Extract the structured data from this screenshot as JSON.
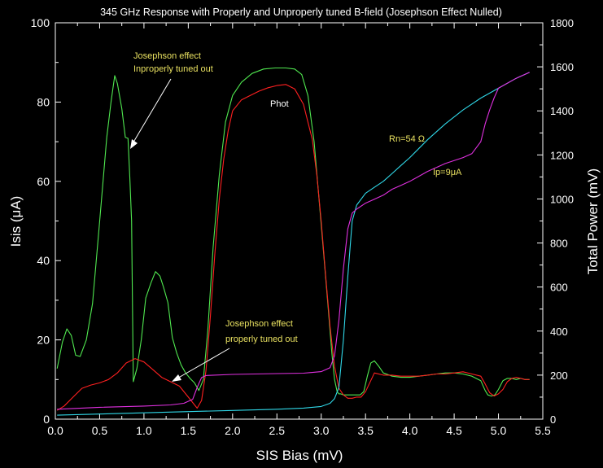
{
  "chart_data": {
    "type": "line",
    "title": "345 GHz Response with Properly and Unproperly tuned B-field (Josephson Effect Nulled)",
    "xlabel": "SIS Bias (mV)",
    "ylabel_left": "Isis (μA)",
    "ylabel_right": "Total Power (mV)",
    "xlim": [
      0,
      5.5
    ],
    "ylim_left": [
      0,
      100
    ],
    "ylim_right": [
      0,
      1800
    ],
    "xticks": [
      "0.0",
      "0.5",
      "1.0",
      "1.5",
      "2.0",
      "2.5",
      "3.0",
      "3.5",
      "4.0",
      "4.5",
      "5.0",
      "5.5"
    ],
    "yticks_left": [
      "0",
      "20",
      "40",
      "60",
      "80",
      "100"
    ],
    "yticks_right": [
      "0",
      "200",
      "400",
      "600",
      "800",
      "1000",
      "1200",
      "1400",
      "1600",
      "1800"
    ],
    "colors": {
      "background": "#000000",
      "axes": "#ffffff",
      "annotation": "#e8e060",
      "green": "#50e850",
      "red": "#ff2020",
      "cyan": "#30d8e8",
      "magenta": "#e030e0"
    },
    "annotations": [
      {
        "text_lines": [
          "Josephson effect",
          "Inproperly tuned out"
        ],
        "color": "#e8e060"
      },
      {
        "text_lines": [
          "Josephson effect",
          "properly tuned out"
        ],
        "color": "#e8e060"
      },
      {
        "text_lines": [
          "Phot"
        ],
        "color": "#ffffff"
      },
      {
        "text_lines": [
          "Rn=54 Ω"
        ],
        "color": "#e8e060"
      },
      {
        "text_lines": [
          "Ip=9μA"
        ],
        "color": "#e8e060"
      }
    ],
    "series": [
      {
        "axis": "right",
        "color": "#50e850",
        "x": [
          0.02,
          0.08,
          0.13,
          0.18,
          0.23,
          0.28,
          0.35,
          0.42,
          0.5,
          0.58,
          0.63,
          0.67,
          0.7,
          0.75,
          0.79,
          0.82,
          0.84,
          0.86,
          0.88,
          0.92,
          0.97,
          1.02,
          1.08,
          1.13,
          1.18,
          1.22,
          1.27,
          1.32,
          1.37,
          1.42,
          1.47,
          1.52,
          1.57,
          1.62,
          1.67,
          1.72,
          1.78,
          1.85,
          1.92,
          2.0,
          2.1,
          2.22,
          2.35,
          2.48,
          2.6,
          2.7,
          2.78,
          2.85,
          2.92,
          2.98,
          3.03,
          3.08,
          3.12,
          3.15,
          3.18,
          3.2,
          3.22,
          3.25,
          3.28,
          3.32,
          3.36,
          3.4,
          3.44,
          3.48,
          3.52,
          3.56,
          3.6,
          3.65,
          3.7,
          3.8,
          3.9,
          4.0,
          4.1,
          4.2,
          4.3,
          4.4,
          4.5,
          4.6,
          4.7,
          4.8,
          4.85,
          4.88,
          4.92,
          4.96,
          5.0,
          5.05,
          5.1,
          5.15,
          5.2,
          5.25,
          5.3,
          5.35
        ],
        "y": [
          230,
          350,
          410,
          380,
          290,
          285,
          360,
          525,
          900,
          1280,
          1445,
          1560,
          1525,
          1410,
          1280,
          1275,
          1100,
          900,
          170,
          230,
          360,
          550,
          620,
          670,
          650,
          600,
          530,
          370,
          300,
          245,
          210,
          185,
          165,
          130,
          180,
          400,
          780,
          1110,
          1350,
          1470,
          1530,
          1570,
          1590,
          1595,
          1595,
          1590,
          1565,
          1470,
          1260,
          980,
          740,
          500,
          300,
          180,
          125,
          115,
          115,
          110,
          110,
          110,
          110,
          110,
          110,
          125,
          195,
          255,
          265,
          240,
          210,
          195,
          190,
          190,
          195,
          200,
          205,
          210,
          210,
          205,
          195,
          175,
          130,
          110,
          105,
          110,
          135,
          175,
          185,
          185,
          180,
          185,
          180,
          180
        ]
      },
      {
        "axis": "right",
        "color": "#ff2020",
        "x": [
          0.02,
          0.1,
          0.2,
          0.3,
          0.4,
          0.5,
          0.6,
          0.7,
          0.8,
          0.9,
          1.0,
          1.1,
          1.2,
          1.3,
          1.4,
          1.5,
          1.6,
          1.65,
          1.7,
          1.75,
          1.8,
          1.85,
          1.9,
          1.95,
          2.0,
          2.1,
          2.2,
          2.3,
          2.4,
          2.5,
          2.6,
          2.7,
          2.8,
          2.9,
          2.95,
          3.0,
          3.05,
          3.1,
          3.15,
          3.2,
          3.25,
          3.3,
          3.35,
          3.4,
          3.45,
          3.5,
          3.6,
          3.7,
          3.8,
          3.9,
          4.0,
          4.1,
          4.2,
          4.3,
          4.4,
          4.5,
          4.6,
          4.7,
          4.8,
          4.85,
          4.9,
          4.95,
          5.0,
          5.05,
          5.1,
          5.15,
          5.2,
          5.25,
          5.3,
          5.35
        ],
        "y": [
          40,
          60,
          100,
          140,
          155,
          165,
          180,
          210,
          255,
          275,
          260,
          225,
          190,
          170,
          150,
          100,
          50,
          85,
          220,
          470,
          750,
          1000,
          1180,
          1310,
          1400,
          1450,
          1470,
          1490,
          1505,
          1515,
          1520,
          1500,
          1430,
          1270,
          1110,
          900,
          650,
          420,
          240,
          140,
          110,
          95,
          95,
          100,
          100,
          125,
          210,
          200,
          200,
          195,
          195,
          195,
          200,
          205,
          205,
          210,
          215,
          205,
          195,
          160,
          120,
          105,
          115,
          135,
          170,
          185,
          190,
          185,
          180,
          180
        ]
      },
      {
        "axis": "left",
        "color": "#30d8e8",
        "x": [
          0.02,
          0.5,
          1.0,
          1.5,
          2.0,
          2.5,
          2.8,
          3.0,
          3.1,
          3.15,
          3.2,
          3.25,
          3.3,
          3.35,
          3.4,
          3.5,
          3.6,
          3.7,
          3.8,
          3.9,
          4.0,
          4.2,
          4.4,
          4.6,
          4.8,
          5.0,
          5.2,
          5.35
        ],
        "y": [
          1.0,
          1.3,
          1.6,
          1.9,
          2.2,
          2.5,
          2.8,
          3.2,
          4.0,
          5.2,
          8.0,
          20.0,
          36.0,
          50.0,
          54.0,
          57.0,
          58.5,
          60.0,
          62.0,
          64.0,
          66.0,
          70.5,
          74.5,
          78.0,
          81.0,
          83.5,
          86.0,
          87.5
        ]
      },
      {
        "axis": "left",
        "color": "#e030e0",
        "x": [
          0.02,
          0.5,
          1.0,
          1.3,
          1.45,
          1.55,
          1.6,
          1.65,
          1.7,
          2.0,
          2.5,
          2.8,
          3.0,
          3.1,
          3.15,
          3.2,
          3.25,
          3.3,
          3.35,
          3.4,
          3.5,
          3.6,
          3.7,
          3.8,
          3.9,
          4.0,
          4.2,
          4.4,
          4.6,
          4.7,
          4.8,
          4.85,
          4.9,
          4.95,
          5.0,
          5.2,
          5.35
        ],
        "y": [
          2.5,
          3.0,
          3.3,
          3.6,
          4.0,
          5.0,
          8.0,
          10.5,
          11.0,
          11.3,
          11.5,
          11.6,
          12.0,
          13.0,
          16.0,
          25.0,
          38.0,
          48.0,
          52.0,
          53.0,
          54.5,
          55.5,
          56.5,
          58.0,
          59.0,
          60.0,
          62.5,
          64.5,
          66.0,
          67.0,
          70.0,
          74.5,
          78.0,
          81.0,
          83.5,
          86.0,
          87.5
        ]
      }
    ]
  }
}
